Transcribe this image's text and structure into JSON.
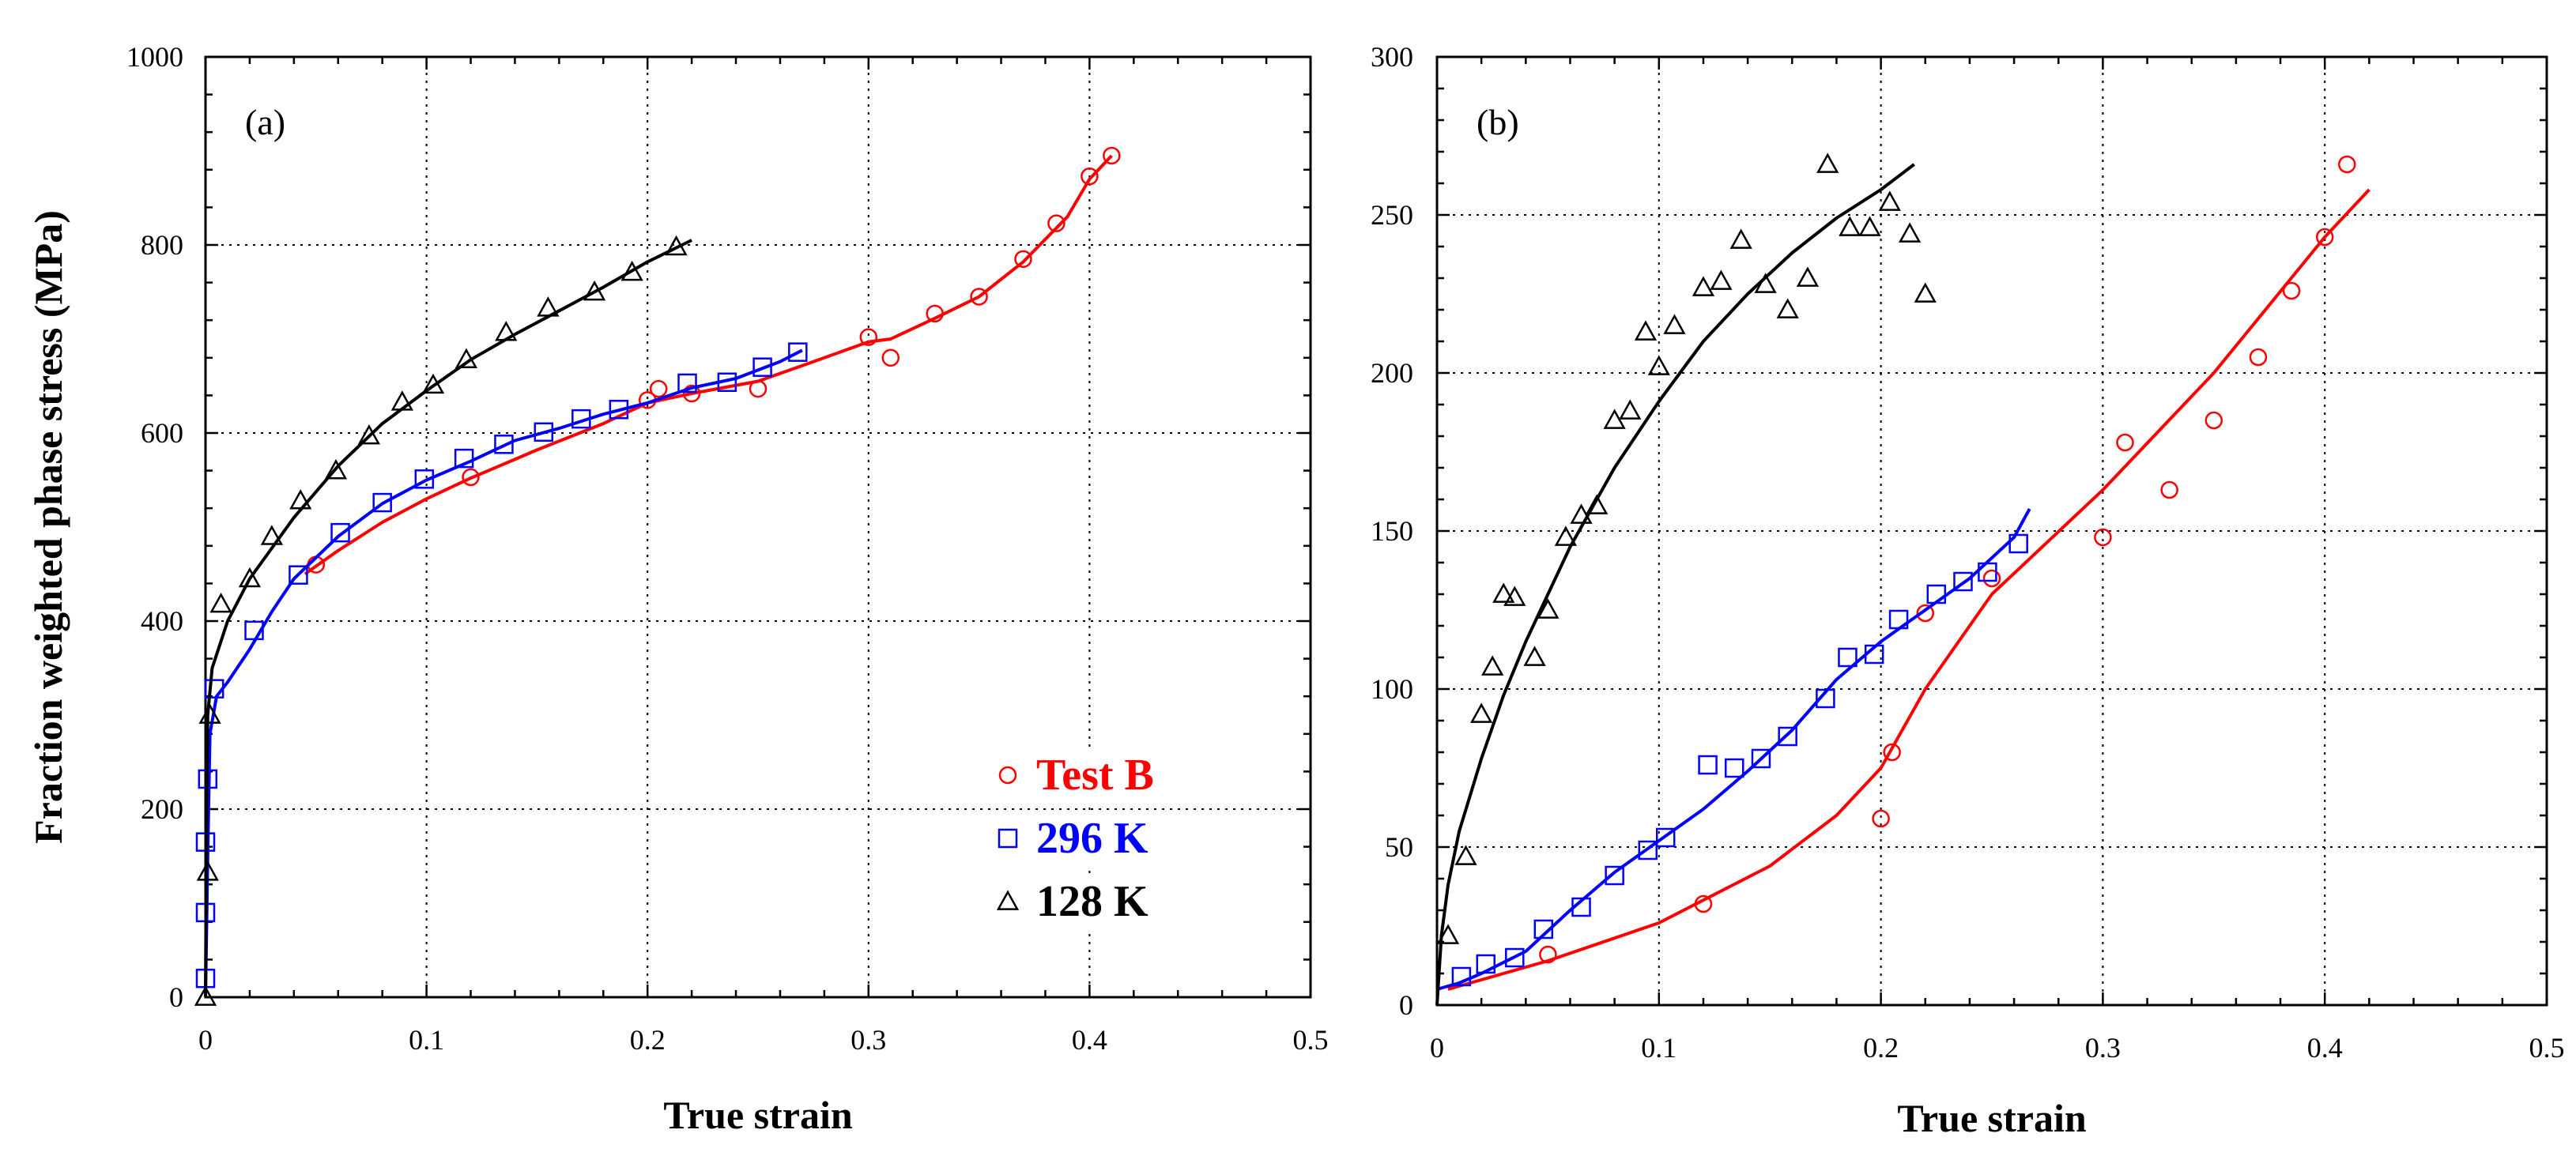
{
  "chart_data": [
    {
      "panel": "a",
      "type": "line",
      "panel_label": "(a)",
      "xlabel": "True strain",
      "ylabel": "Fraction weighted phase stress (MPa)",
      "xlim": [
        0,
        0.5
      ],
      "ylim": [
        0,
        1000
      ],
      "x_ticks": [
        "0",
        "0.1",
        "0.2",
        "0.3",
        "0.4",
        "0.5"
      ],
      "y_ticks": [
        "0",
        "200",
        "400",
        "600",
        "800",
        "1000"
      ],
      "x_tick_values": [
        0,
        0.1,
        0.2,
        0.3,
        0.4,
        0.5
      ],
      "y_tick_values": [
        0,
        200,
        400,
        600,
        800,
        1000
      ],
      "grid": true,
      "legend": {
        "placement": "lower-right",
        "entries": [
          {
            "label": "Test  B",
            "marker": "circle",
            "color": "#ff0000"
          },
          {
            "label": "296 K",
            "marker": "square",
            "color": "#0000ff"
          },
          {
            "label": "128 K",
            "marker": "triangle",
            "color": "#000000"
          }
        ]
      },
      "series": [
        {
          "name": "Test  B",
          "color": "#ff0000",
          "marker": "circle",
          "line": [
            [
              0.045,
              450
            ],
            [
              0.06,
              475
            ],
            [
              0.08,
              505
            ],
            [
              0.1,
              530
            ],
            [
              0.12,
              552
            ],
            [
              0.15,
              582
            ],
            [
              0.18,
              610
            ],
            [
              0.2,
              632
            ],
            [
              0.22,
              642
            ],
            [
              0.25,
              655
            ],
            [
              0.28,
              680
            ],
            [
              0.3,
              697
            ],
            [
              0.31,
              700
            ],
            [
              0.33,
              722
            ],
            [
              0.35,
              745
            ],
            [
              0.37,
              782
            ],
            [
              0.39,
              830
            ],
            [
              0.4,
              870
            ],
            [
              0.41,
              895
            ]
          ],
          "points": [
            [
              0.05,
              460
            ],
            [
              0.12,
              553
            ],
            [
              0.2,
              635
            ],
            [
              0.205,
              647
            ],
            [
              0.22,
              642
            ],
            [
              0.25,
              647
            ],
            [
              0.3,
              702
            ],
            [
              0.31,
              680
            ],
            [
              0.33,
              727
            ],
            [
              0.35,
              745
            ],
            [
              0.37,
              785
            ],
            [
              0.385,
              823
            ],
            [
              0.4,
              873
            ],
            [
              0.41,
              895
            ]
          ]
        },
        {
          "name": "296 K",
          "color": "#0000ff",
          "marker": "square",
          "line": [
            [
              0,
              0
            ],
            [
              0.001,
              150
            ],
            [
              0.002,
              280
            ],
            [
              0.005,
              320
            ],
            [
              0.01,
              335
            ],
            [
              0.02,
              370
            ],
            [
              0.03,
              410
            ],
            [
              0.04,
              445
            ],
            [
              0.06,
              490
            ],
            [
              0.08,
              525
            ],
            [
              0.1,
              550
            ],
            [
              0.12,
              570
            ],
            [
              0.14,
              592
            ],
            [
              0.16,
              605
            ],
            [
              0.18,
              620
            ],
            [
              0.2,
              632
            ],
            [
              0.22,
              648
            ],
            [
              0.24,
              658
            ],
            [
              0.26,
              676
            ],
            [
              0.27,
              688
            ]
          ],
          "points": [
            [
              0,
              20
            ],
            [
              0,
              90
            ],
            [
              0,
              165
            ],
            [
              0.001,
              232
            ],
            [
              0.004,
              328
            ],
            [
              0.022,
              390
            ],
            [
              0.042,
              449
            ],
            [
              0.061,
              494
            ],
            [
              0.08,
              526
            ],
            [
              0.099,
              551
            ],
            [
              0.117,
              573
            ],
            [
              0.135,
              588
            ],
            [
              0.153,
              601
            ],
            [
              0.17,
              615
            ],
            [
              0.187,
              625
            ],
            [
              0.218,
              653
            ],
            [
              0.236,
              654
            ],
            [
              0.252,
              670
            ],
            [
              0.268,
              686
            ]
          ]
        },
        {
          "name": "128 K",
          "color": "#000000",
          "marker": "triangle",
          "line": [
            [
              0,
              0
            ],
            [
              0.0005,
              200
            ],
            [
              0.001,
              300
            ],
            [
              0.003,
              350
            ],
            [
              0.01,
              400
            ],
            [
              0.02,
              445
            ],
            [
              0.04,
              510
            ],
            [
              0.06,
              565
            ],
            [
              0.08,
              610
            ],
            [
              0.1,
              645
            ],
            [
              0.12,
              678
            ],
            [
              0.14,
              705
            ],
            [
              0.16,
              730
            ],
            [
              0.18,
              755
            ],
            [
              0.2,
              782
            ],
            [
              0.22,
              805
            ]
          ],
          "points": [
            [
              0,
              0
            ],
            [
              0.001,
              133
            ],
            [
              0.002,
              300
            ],
            [
              0.007,
              418
            ],
            [
              0.02,
              445
            ],
            [
              0.03,
              490
            ],
            [
              0.043,
              528
            ],
            [
              0.059,
              560
            ],
            [
              0.074,
              597
            ],
            [
              0.089,
              633
            ],
            [
              0.103,
              651
            ],
            [
              0.118,
              678
            ],
            [
              0.136,
              707
            ],
            [
              0.155,
              733
            ],
            [
              0.176,
              750
            ],
            [
              0.193,
              771
            ],
            [
              0.213,
              798
            ]
          ]
        }
      ]
    },
    {
      "panel": "b",
      "type": "line",
      "panel_label": "(b)",
      "xlabel": "True strain",
      "ylabel": "",
      "xlim": [
        0,
        0.5
      ],
      "ylim": [
        0,
        300
      ],
      "x_ticks": [
        "0",
        "0.1",
        "0.2",
        "0.3",
        "0.4",
        "0.5"
      ],
      "y_ticks": [
        "0",
        "50",
        "100",
        "150",
        "200",
        "250",
        "300"
      ],
      "x_tick_values": [
        0,
        0.1,
        0.2,
        0.3,
        0.4,
        0.5
      ],
      "y_tick_values": [
        0,
        50,
        100,
        150,
        200,
        250,
        300
      ],
      "grid": true,
      "series": [
        {
          "name": "Test  B",
          "color": "#ff0000",
          "marker": "circle",
          "line": [
            [
              0.005,
              5
            ],
            [
              0.05,
              14
            ],
            [
              0.1,
              26
            ],
            [
              0.15,
              44
            ],
            [
              0.18,
              60
            ],
            [
              0.2,
              75
            ],
            [
              0.22,
              100
            ],
            [
              0.25,
              130
            ],
            [
              0.3,
              163
            ],
            [
              0.35,
              200
            ],
            [
              0.4,
              243
            ],
            [
              0.42,
              258
            ]
          ],
          "points": [
            [
              0.05,
              16
            ],
            [
              0.12,
              32
            ],
            [
              0.2,
              59
            ],
            [
              0.205,
              80
            ],
            [
              0.22,
              124
            ],
            [
              0.25,
              135
            ],
            [
              0.3,
              148
            ],
            [
              0.31,
              178
            ],
            [
              0.33,
              163
            ],
            [
              0.35,
              185
            ],
            [
              0.37,
              205
            ],
            [
              0.385,
              226
            ],
            [
              0.4,
              243
            ],
            [
              0.41,
              266
            ]
          ]
        },
        {
          "name": "296 K",
          "color": "#0000ff",
          "marker": "square",
          "line": [
            [
              0,
              5
            ],
            [
              0.01,
              7
            ],
            [
              0.02,
              10
            ],
            [
              0.04,
              17
            ],
            [
              0.06,
              30
            ],
            [
              0.08,
              42
            ],
            [
              0.1,
              52
            ],
            [
              0.12,
              62
            ],
            [
              0.14,
              74
            ],
            [
              0.16,
              87
            ],
            [
              0.18,
              103
            ],
            [
              0.2,
              115
            ],
            [
              0.22,
              125
            ],
            [
              0.24,
              135
            ],
            [
              0.26,
              148
            ],
            [
              0.267,
              157
            ]
          ],
          "points": [
            [
              0.011,
              9
            ],
            [
              0.022,
              13
            ],
            [
              0.035,
              15
            ],
            [
              0.048,
              24
            ],
            [
              0.065,
              31
            ],
            [
              0.08,
              41
            ],
            [
              0.095,
              49
            ],
            [
              0.103,
              53
            ],
            [
              0.122,
              76
            ],
            [
              0.134,
              75
            ],
            [
              0.146,
              78
            ],
            [
              0.158,
              85
            ],
            [
              0.175,
              97
            ],
            [
              0.185,
              110
            ],
            [
              0.197,
              111
            ],
            [
              0.208,
              122
            ],
            [
              0.225,
              130
            ],
            [
              0.237,
              134
            ],
            [
              0.248,
              137
            ],
            [
              0.262,
              146
            ]
          ]
        },
        {
          "name": "128 K",
          "color": "#000000",
          "marker": "triangle",
          "line": [
            [
              0,
              0
            ],
            [
              0.002,
              22
            ],
            [
              0.005,
              38
            ],
            [
              0.01,
              55
            ],
            [
              0.02,
              78
            ],
            [
              0.03,
              98
            ],
            [
              0.04,
              115
            ],
            [
              0.06,
              145
            ],
            [
              0.08,
              170
            ],
            [
              0.1,
              191
            ],
            [
              0.12,
              210
            ],
            [
              0.14,
              225
            ],
            [
              0.16,
              238
            ],
            [
              0.18,
              249
            ],
            [
              0.2,
              258
            ],
            [
              0.215,
              266
            ]
          ],
          "points": [
            [
              0.005,
              22
            ],
            [
              0.013,
              47
            ],
            [
              0.02,
              92
            ],
            [
              0.025,
              107
            ],
            [
              0.03,
              130
            ],
            [
              0.035,
              129
            ],
            [
              0.044,
              110
            ],
            [
              0.05,
              125
            ],
            [
              0.058,
              148
            ],
            [
              0.065,
              155
            ],
            [
              0.072,
              158
            ],
            [
              0.08,
              185
            ],
            [
              0.087,
              188
            ],
            [
              0.094,
              213
            ],
            [
              0.1,
              202
            ],
            [
              0.107,
              215
            ],
            [
              0.12,
              227
            ],
            [
              0.128,
              229
            ],
            [
              0.137,
              242
            ],
            [
              0.148,
              228
            ],
            [
              0.158,
              220
            ],
            [
              0.167,
              230
            ],
            [
              0.176,
              266
            ],
            [
              0.186,
              246
            ],
            [
              0.195,
              246
            ],
            [
              0.204,
              254
            ],
            [
              0.213,
              244
            ],
            [
              0.22,
              225
            ]
          ]
        }
      ]
    }
  ]
}
